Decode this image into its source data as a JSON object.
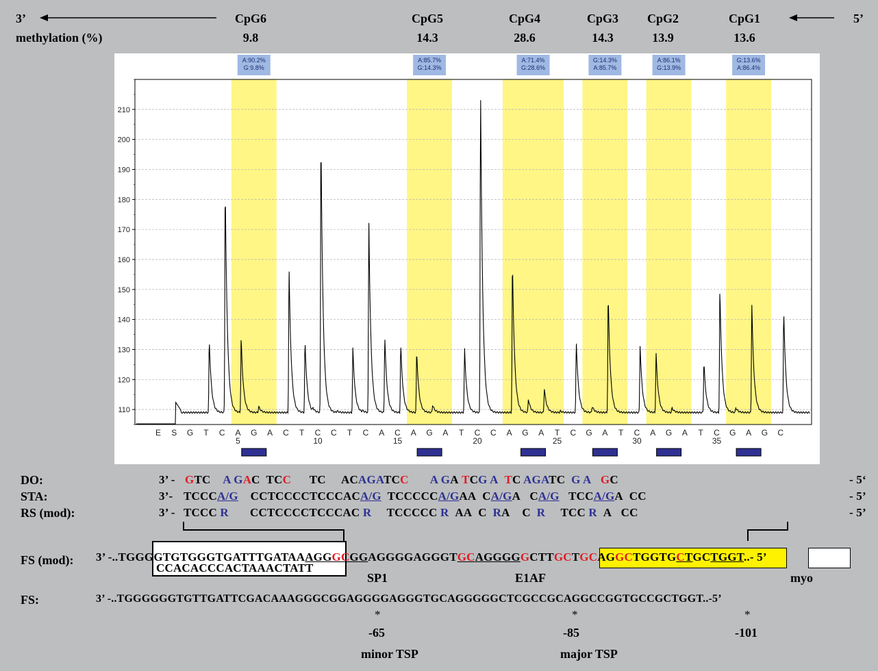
{
  "header": {
    "left_end": "3’",
    "right_end": "5’",
    "methylation_label": "methylation (%)"
  },
  "cpg_sites": [
    {
      "name": "CpG6",
      "methylation": "9.8"
    },
    {
      "name": "CpG5",
      "methylation": "14.3"
    },
    {
      "name": "CpG4",
      "methylation": "28.6"
    },
    {
      "name": "CpG3",
      "methylation": "14.3"
    },
    {
      "name": "CpG2",
      "methylation": "13.9"
    },
    {
      "name": "CpG1",
      "methylation": "13.6"
    }
  ],
  "chart_data": {
    "type": "line",
    "title": "",
    "xlabel": "",
    "ylabel": "",
    "ylim": [
      105,
      220
    ],
    "yticks": [
      110,
      120,
      130,
      140,
      150,
      160,
      170,
      180,
      190,
      200,
      210
    ],
    "grid": true,
    "dispensation": [
      "E",
      "S",
      "G",
      "T",
      "C",
      "A",
      "G",
      "A",
      "C",
      "T",
      "C",
      "C",
      "T",
      "C",
      "A",
      "C",
      "A",
      "G",
      "A",
      "T",
      "C",
      "C",
      "A",
      "G",
      "A",
      "T",
      "C",
      "G",
      "A",
      "T",
      "C",
      "A",
      "G",
      "A",
      "T",
      "C",
      "G",
      "A",
      "G",
      "C"
    ],
    "position_labels": [
      {
        "index": 5,
        "label": "5"
      },
      {
        "index": 10,
        "label": "10"
      },
      {
        "index": 15,
        "label": "15"
      },
      {
        "index": 20,
        "label": "20"
      },
      {
        "index": 25,
        "label": "25"
      },
      {
        "index": 30,
        "label": "30"
      },
      {
        "index": 35,
        "label": "35"
      }
    ],
    "baseline": 109,
    "peaks": [
      {
        "pos": 4.2,
        "height": 133.5
      },
      {
        "pos": 5.2,
        "height": 185.5
      },
      {
        "pos": 6.2,
        "height": 134
      },
      {
        "pos": 7.3,
        "height": 111
      },
      {
        "pos": 9.2,
        "height": 158
      },
      {
        "pos": 10.2,
        "height": 133
      },
      {
        "pos": 10.7,
        "height": 110
      },
      {
        "pos": 11.2,
        "height": 202
      },
      {
        "pos": 12.2,
        "height": 109.5
      },
      {
        "pos": 13.2,
        "height": 130.5
      },
      {
        "pos": 13.8,
        "height": 109.5
      },
      {
        "pos": 14.2,
        "height": 173
      },
      {
        "pos": 15.2,
        "height": 134.5
      },
      {
        "pos": 16.2,
        "height": 132
      },
      {
        "pos": 17.2,
        "height": 129.5
      },
      {
        "pos": 18.2,
        "height": 111.5
      },
      {
        "pos": 20.2,
        "height": 130.5
      },
      {
        "pos": 21.2,
        "height": 218
      },
      {
        "pos": 23.2,
        "height": 159.5
      },
      {
        "pos": 24.2,
        "height": 113.5
      },
      {
        "pos": 25.2,
        "height": 117
      },
      {
        "pos": 26.2,
        "height": 109.5
      },
      {
        "pos": 27.2,
        "height": 133
      },
      {
        "pos": 28.2,
        "height": 111
      },
      {
        "pos": 29.2,
        "height": 148.5
      },
      {
        "pos": 31.2,
        "height": 131.5
      },
      {
        "pos": 32.2,
        "height": 129
      },
      {
        "pos": 33.2,
        "height": 110.5
      },
      {
        "pos": 35.2,
        "height": 126
      },
      {
        "pos": 36.2,
        "height": 150
      },
      {
        "pos": 37.2,
        "height": 110.5
      },
      {
        "pos": 38.2,
        "height": 145.5
      },
      {
        "pos": 40.2,
        "height": 143.5
      }
    ],
    "highlights": [
      {
        "from": 6,
        "to": 8,
        "annotation": [
          "A:90.2%",
          "G:9.8%"
        ]
      },
      {
        "from": 17,
        "to": 19,
        "annotation": [
          "A:85.7%",
          "G:14.3%"
        ]
      },
      {
        "from": 23,
        "to": 26,
        "annotation": [
          "A:71.4%",
          "G:28.6%"
        ]
      },
      {
        "from": 28,
        "to": 30,
        "annotation": [
          "G:14.3%",
          "A:85.7%"
        ]
      },
      {
        "from": 32,
        "to": 34,
        "annotation": [
          "A:86.1%",
          "G:13.9%"
        ]
      },
      {
        "from": 37,
        "to": 39,
        "annotation": [
          "G:13.6%",
          "A:86.4%"
        ]
      }
    ]
  },
  "sequences": {
    "do": {
      "label": "DO:",
      "prefix": "3’ -",
      "suffix": "- 5‘"
    },
    "sta": {
      "label": "STA:",
      "prefix": "3’-",
      "suffix": "- 5’"
    },
    "rs": {
      "label": "RS (mod):",
      "prefix": "3’ -",
      "suffix": "- 5’"
    },
    "fs_mod": {
      "label": "FS (mod):",
      "prefix": "3’ -..TGG",
      "lower_box": "CCACACCCACTAAACTATT"
    },
    "fs": {
      "label": "FS:",
      "text": "3’ -..TGGGGGGTGTTGATTCGACAAAGGGCGGAGGGGAGGGTGCAGGGGGCTCGCCGCAGGCCGGTGCCGCTGGT..-5’"
    }
  },
  "sites": {
    "sp1": "SP1",
    "e1af": "E1AF",
    "myo": "myo"
  },
  "tsp": [
    {
      "star": "*",
      "pos": "-65",
      "label": "minor TSP"
    },
    {
      "star": "*",
      "pos": "-85",
      "label": "major TSP"
    },
    {
      "star": "*",
      "pos": "-101",
      "label": ""
    }
  ]
}
